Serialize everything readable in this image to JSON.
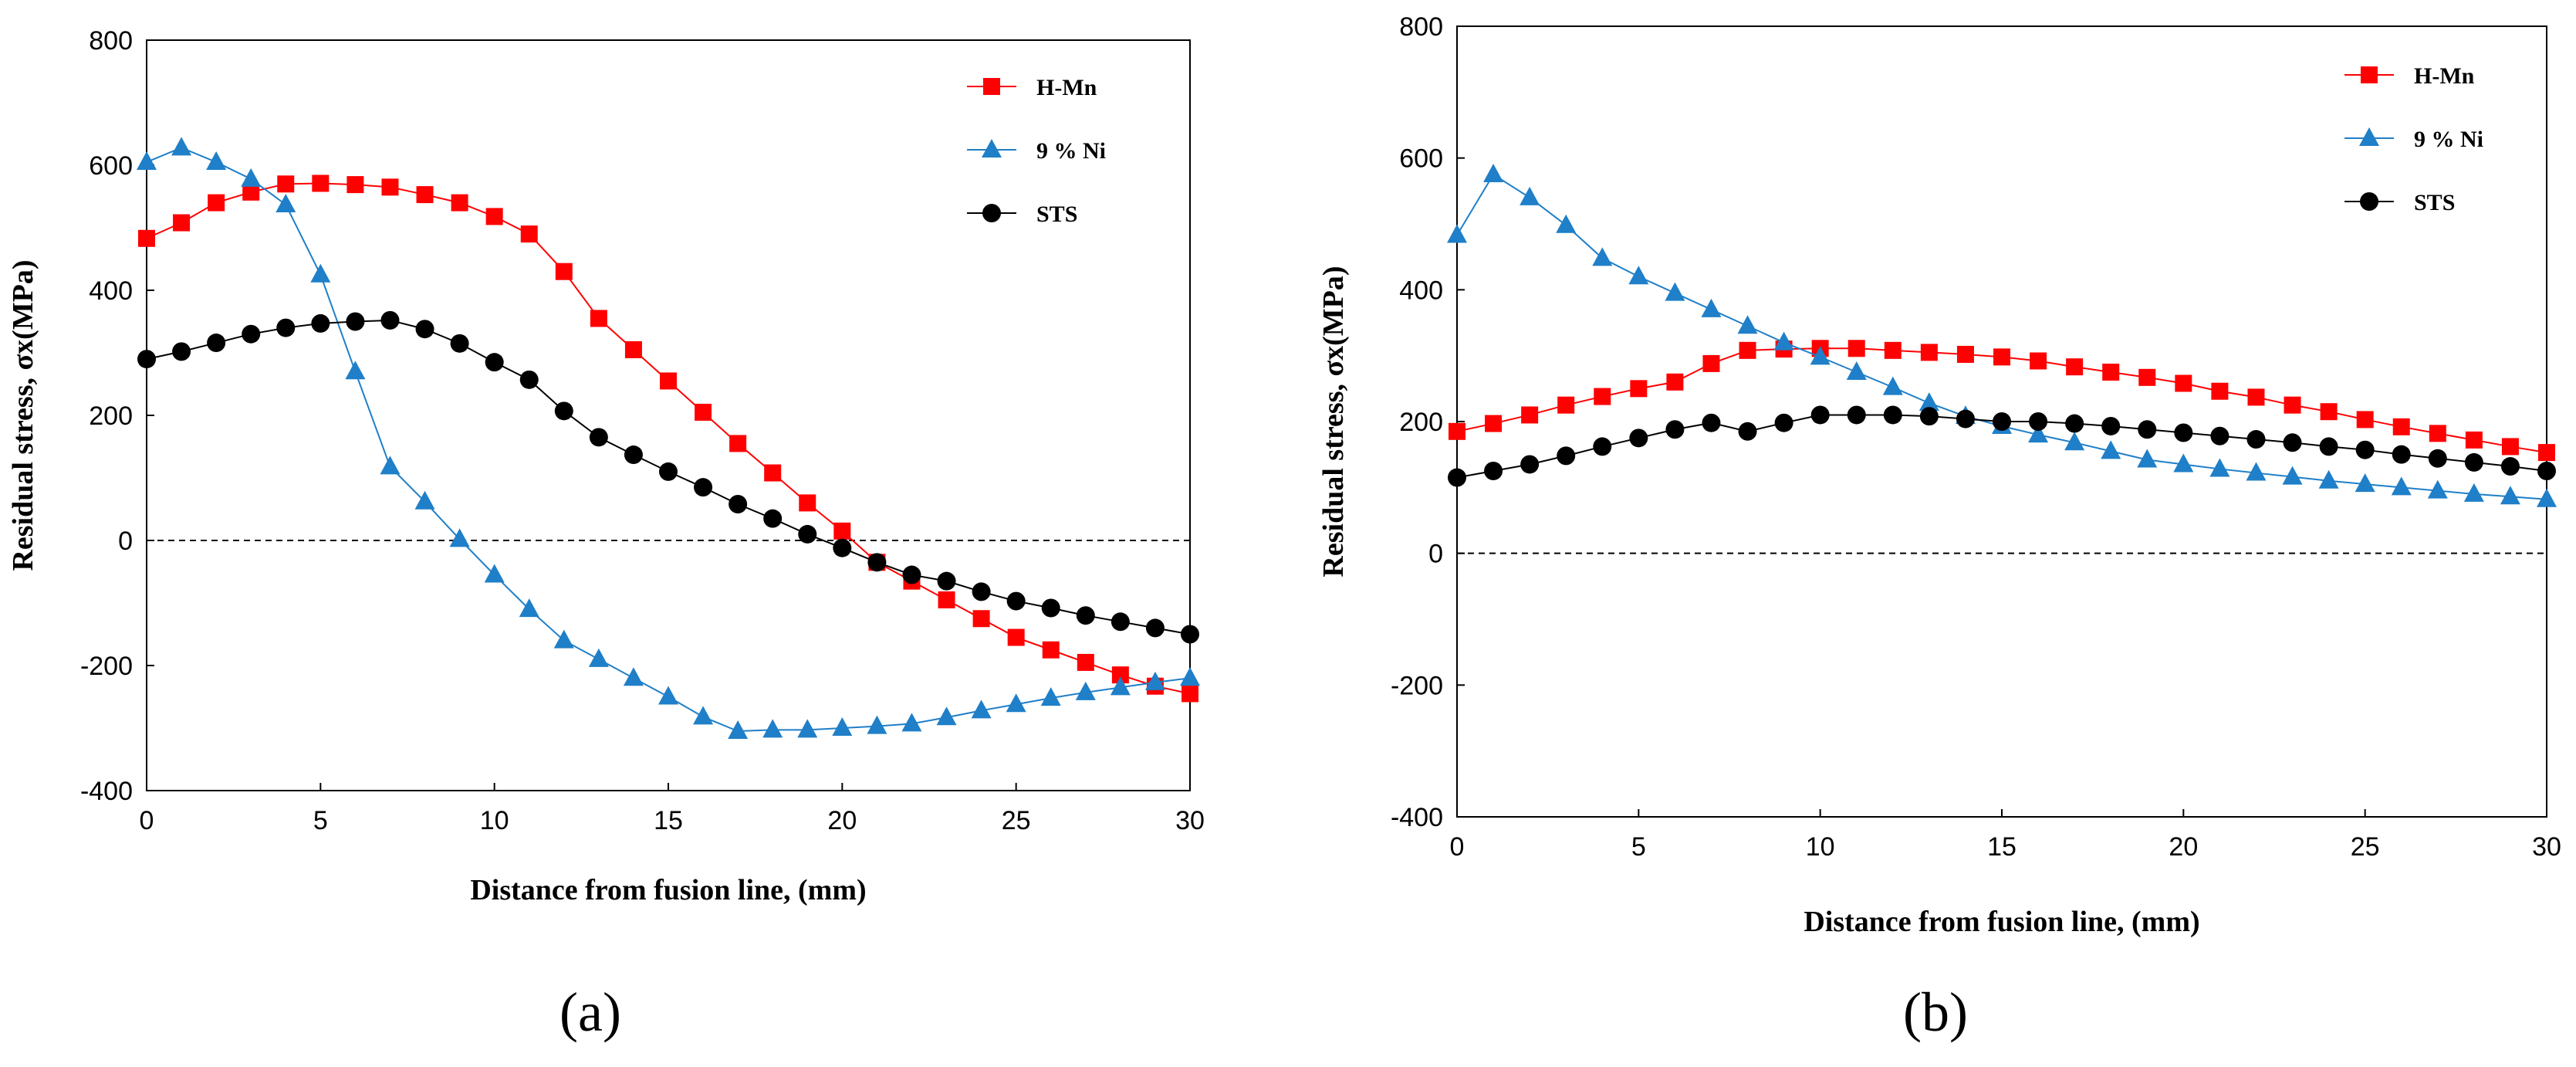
{
  "chart_data": [
    {
      "type": "line",
      "panel_label": "(a)",
      "xlabel": "Distance from fusion line, (mm)",
      "ylabel": "Residual stress, σx(MPa)",
      "xlim": [
        0,
        30
      ],
      "ylim": [
        -400,
        800
      ],
      "xticks": [
        0,
        5,
        10,
        15,
        20,
        25,
        30
      ],
      "yticks": [
        -400,
        -200,
        0,
        200,
        400,
        600,
        800
      ],
      "zero_line": true,
      "legend_position": "top-right",
      "series": [
        {
          "name": "H-Mn",
          "color": "#ff0000",
          "marker": "square",
          "x": [
            0,
            1,
            2,
            3,
            4,
            5,
            6,
            7,
            8,
            9,
            10,
            11,
            12,
            13,
            14,
            15,
            16,
            17,
            18,
            19,
            20,
            21,
            22,
            23,
            24,
            25,
            26,
            27,
            28,
            29,
            30
          ],
          "y": [
            483,
            508,
            540,
            557,
            570,
            571,
            569,
            565,
            553,
            540,
            518,
            490,
            430,
            355,
            305,
            255,
            205,
            155,
            108,
            60,
            15,
            -35,
            -65,
            -95,
            -125,
            -155,
            -175,
            -195,
            -215,
            -233,
            -245
          ]
        },
        {
          "name": "9 % Ni",
          "color": "#1f7fc8",
          "marker": "triangle",
          "x": [
            0,
            1,
            2,
            3,
            4,
            5,
            6,
            7,
            8,
            9,
            10,
            11,
            12,
            13,
            14,
            15,
            16,
            17,
            18,
            19,
            20,
            21,
            22,
            23,
            24,
            25,
            26,
            27,
            28,
            29,
            30
          ],
          "y": [
            605,
            628,
            605,
            578,
            537,
            425,
            270,
            118,
            62,
            2,
            -55,
            -110,
            -160,
            -190,
            -220,
            -250,
            -282,
            -305,
            -303,
            -303,
            -300,
            -297,
            -293,
            -283,
            -272,
            -262,
            -252,
            -243,
            -235,
            -227,
            -220
          ]
        },
        {
          "name": "STS",
          "color": "#000000",
          "marker": "circle",
          "x": [
            0,
            1,
            2,
            3,
            4,
            5,
            6,
            7,
            8,
            9,
            10,
            11,
            12,
            13,
            14,
            15,
            16,
            17,
            18,
            19,
            20,
            21,
            22,
            23,
            24,
            25,
            26,
            27,
            28,
            29,
            30
          ],
          "y": [
            290,
            302,
            316,
            330,
            340,
            347,
            350,
            352,
            338,
            315,
            285,
            257,
            207,
            165,
            137,
            110,
            85,
            58,
            35,
            10,
            -12,
            -35,
            -55,
            -65,
            -82,
            -97,
            -108,
            -120,
            -130,
            -140,
            -150
          ]
        }
      ]
    },
    {
      "type": "line",
      "panel_label": "(b)",
      "xlabel": "Distance from fusion line, (mm)",
      "ylabel": "Residual stress, σx(MPa)",
      "xlim": [
        0,
        30
      ],
      "ylim": [
        -400,
        800
      ],
      "xticks": [
        0,
        5,
        10,
        15,
        20,
        25,
        30
      ],
      "yticks": [
        -400,
        -200,
        0,
        200,
        400,
        600,
        800
      ],
      "zero_line": true,
      "legend_position": "top-right",
      "series": [
        {
          "name": "H-Mn",
          "color": "#ff0000",
          "marker": "square",
          "x": [
            0,
            1,
            2,
            3,
            4,
            5,
            6,
            7,
            8,
            9,
            10,
            11,
            12,
            13,
            14,
            15,
            16,
            17,
            18,
            19,
            20,
            21,
            22,
            23,
            24,
            25,
            26,
            27,
            28,
            29,
            30
          ],
          "y": [
            185,
            197,
            210,
            225,
            238,
            250,
            260,
            288,
            308,
            310,
            311,
            311,
            308,
            305,
            302,
            298,
            292,
            283,
            275,
            267,
            258,
            246,
            237,
            225,
            215,
            203,
            192,
            182,
            172,
            162,
            153
          ]
        },
        {
          "name": "9 % Ni",
          "color": "#1f7fc8",
          "marker": "triangle",
          "x": [
            0,
            1,
            2,
            3,
            4,
            5,
            6,
            7,
            8,
            9,
            10,
            11,
            12,
            13,
            14,
            15,
            16,
            17,
            18,
            19,
            20,
            21,
            22,
            23,
            24,
            25,
            26,
            27,
            28,
            29,
            30
          ],
          "y": [
            483,
            575,
            540,
            498,
            448,
            420,
            395,
            370,
            345,
            320,
            298,
            275,
            252,
            228,
            208,
            193,
            180,
            168,
            155,
            142,
            135,
            128,
            122,
            116,
            110,
            105,
            100,
            95,
            90,
            86,
            82
          ]
        },
        {
          "name": "STS",
          "color": "#000000",
          "marker": "circle",
          "x": [
            0,
            1,
            2,
            3,
            4,
            5,
            6,
            7,
            8,
            9,
            10,
            11,
            12,
            13,
            14,
            15,
            16,
            17,
            18,
            19,
            20,
            21,
            22,
            23,
            24,
            25,
            26,
            27,
            28,
            29,
            30
          ],
          "y": [
            115,
            125,
            135,
            148,
            162,
            175,
            188,
            198,
            185,
            198,
            210,
            210,
            210,
            208,
            204,
            200,
            200,
            197,
            193,
            188,
            183,
            178,
            173,
            168,
            162,
            157,
            150,
            144,
            138,
            132,
            125
          ]
        }
      ]
    }
  ]
}
